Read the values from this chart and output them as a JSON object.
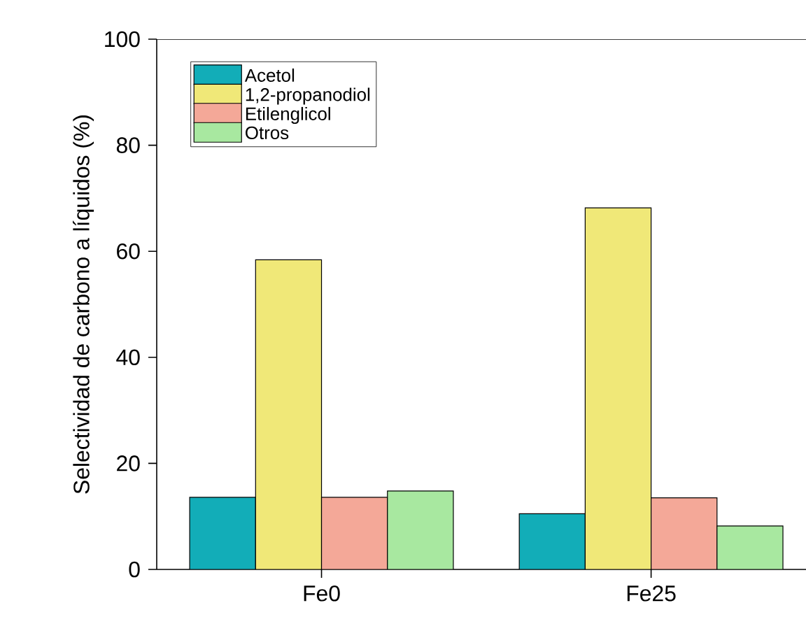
{
  "chart_data": {
    "type": "bar",
    "ylabel": "Selectividad de carbono a líquidos (%)",
    "categories": [
      "Fe0",
      "Fe25"
    ],
    "series": [
      {
        "name": "Acetol",
        "color": "#12adb8",
        "values": [
          13.6,
          10.5
        ]
      },
      {
        "name": "1,2-propanodiol",
        "color": "#f0e878",
        "values": [
          58.4,
          68.2
        ]
      },
      {
        "name": "Etilenglicol",
        "color": "#f4a898",
        "values": [
          13.6,
          13.5
        ]
      },
      {
        "name": "Otros",
        "color": "#a8e8a0",
        "values": [
          14.8,
          8.2
        ]
      }
    ],
    "ylim": [
      0,
      100
    ],
    "yticks": [
      0,
      20,
      40,
      60,
      80,
      100
    ],
    "grid": false,
    "legend": "top left"
  }
}
